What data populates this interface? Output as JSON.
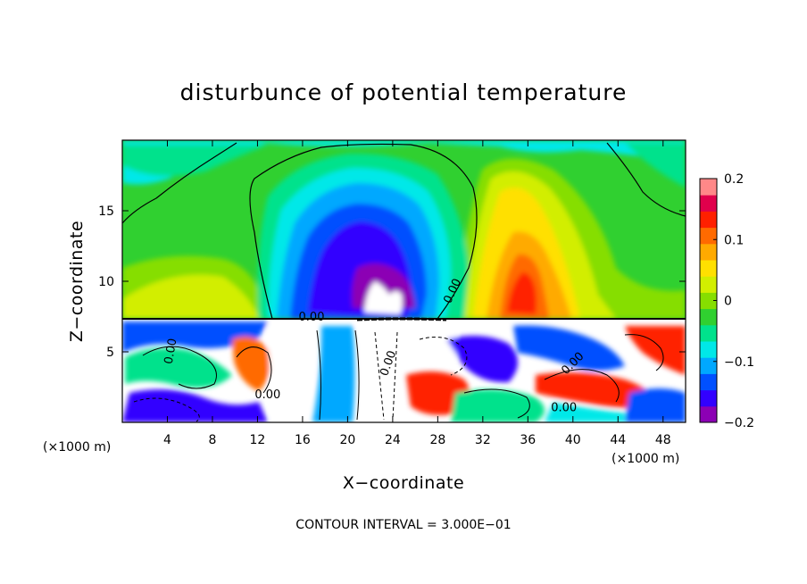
{
  "chart_data": {
    "type": "heatmap",
    "title": "disturbunce of potential temperature",
    "xlabel": "X−coordinate",
    "ylabel": "Z−coordinate",
    "x_unit": "(×1000 m)",
    "x_unit_right": "(×1000 m)",
    "xlim": [
      0,
      50
    ],
    "ylim": [
      0,
      20
    ],
    "x_ticks": [
      4,
      8,
      12,
      16,
      20,
      24,
      28,
      32,
      36,
      40,
      44,
      48
    ],
    "y_ticks": [
      5,
      10,
      15
    ],
    "colorbar": {
      "min": -0.2,
      "max": 0.2,
      "tick_values": [
        0.2,
        0.1,
        0,
        -0.1,
        -0.2
      ],
      "tick_labels": [
        "0.2",
        "0.1",
        "0",
        "−0.1",
        "−0.2"
      ]
    },
    "contour_labels": [
      "0.00",
      "0.00",
      "0.00",
      "0.00",
      "0.00",
      "0.00",
      "0.00"
    ],
    "footer": "CONTOUR INTERVAL = 3.000E−01"
  },
  "colors": {
    "scale": [
      "#8c00b4",
      "#3200ff",
      "#0050ff",
      "#00a8ff",
      "#00e8e8",
      "#00e28c",
      "#30d030",
      "#86de00",
      "#d2ee00",
      "#ffe000",
      "#ffaa00",
      "#ff6a00",
      "#ff2000",
      "#e0004c",
      "#ff8888"
    ]
  }
}
